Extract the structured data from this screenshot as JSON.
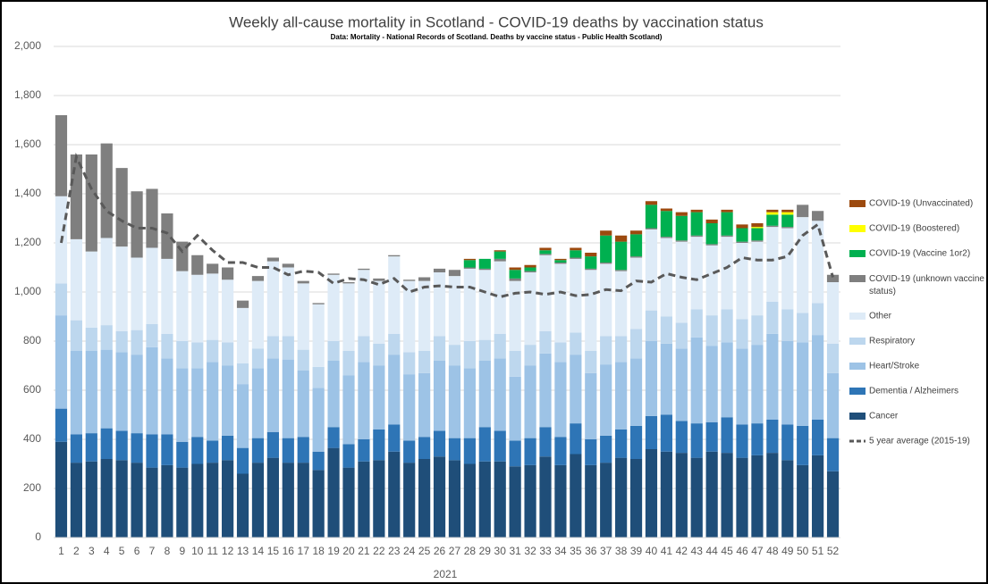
{
  "chart_data": {
    "type": "bar",
    "title": "Weekly all-cause mortality in Scotland - COVID-19 deaths by vaccination status",
    "subtitle": "Data: Mortality - National Records of Scotland. Deaths by vaccine status - Public Health Scotland)",
    "xlabel": "2021",
    "stacked": true,
    "grid": true,
    "legend": "right",
    "categories": [
      "1",
      "2",
      "3",
      "4",
      "5",
      "6",
      "7",
      "8",
      "9",
      "10",
      "11",
      "12",
      "13",
      "14",
      "15",
      "16",
      "17",
      "18",
      "19",
      "20",
      "21",
      "22",
      "23",
      "24",
      "25",
      "26",
      "27",
      "28",
      "29",
      "30",
      "31",
      "32",
      "33",
      "34",
      "35",
      "36",
      "37",
      "38",
      "39",
      "40",
      "41",
      "42",
      "43",
      "44",
      "45",
      "46",
      "47",
      "48",
      "49",
      "50",
      "51",
      "52"
    ],
    "ylim": [
      0,
      2000
    ],
    "yticks": [
      0,
      200,
      400,
      600,
      800,
      {
        "value": 1000,
        "label": "1,000"
      },
      {
        "value": 1200,
        "label": "1,200"
      },
      {
        "value": 1400,
        "label": "1,400"
      },
      {
        "value": 1600,
        "label": "1,600"
      },
      {
        "value": 1800,
        "label": "1,800"
      },
      {
        "value": 2000,
        "label": "2,000"
      }
    ],
    "series": [
      {
        "name": "Cancer",
        "color": "#1f4e79",
        "values": [
          390,
          305,
          310,
          320,
          315,
          305,
          285,
          295,
          285,
          300,
          305,
          315,
          260,
          305,
          325,
          305,
          305,
          275,
          365,
          285,
          310,
          315,
          350,
          305,
          320,
          330,
          315,
          300,
          310,
          310,
          290,
          295,
          330,
          295,
          340,
          295,
          305,
          325,
          320,
          360,
          350,
          345,
          325,
          350,
          345,
          325,
          335,
          345,
          315,
          295,
          335,
          270
        ]
      },
      {
        "name": "Dementia / Alzheimers",
        "color": "#2e75b6",
        "values": [
          135,
          115,
          115,
          125,
          120,
          120,
          135,
          125,
          105,
          110,
          90,
          100,
          105,
          100,
          105,
          100,
          105,
          75,
          85,
          95,
          90,
          125,
          110,
          90,
          90,
          105,
          90,
          105,
          140,
          125,
          105,
          110,
          120,
          115,
          125,
          105,
          110,
          115,
          135,
          135,
          150,
          130,
          140,
          120,
          145,
          135,
          130,
          135,
          145,
          160,
          145,
          135
        ]
      },
      {
        "name": "Heart/Stroke",
        "color": "#9dc3e6",
        "values": [
          380,
          340,
          335,
          320,
          320,
          320,
          355,
          310,
          300,
          280,
          320,
          285,
          260,
          285,
          300,
          320,
          270,
          260,
          270,
          280,
          315,
          260,
          285,
          270,
          260,
          285,
          295,
          285,
          270,
          295,
          260,
          295,
          300,
          305,
          280,
          270,
          290,
          275,
          275,
          305,
          290,
          295,
          350,
          310,
          305,
          310,
          320,
          350,
          340,
          340,
          345,
          265
        ]
      },
      {
        "name": "Respiratory",
        "color": "#bdd7ee",
        "values": [
          130,
          125,
          95,
          100,
          85,
          100,
          95,
          100,
          110,
          105,
          90,
          95,
          85,
          80,
          90,
          95,
          85,
          85,
          80,
          100,
          105,
          90,
          85,
          90,
          90,
          100,
          85,
          110,
          85,
          100,
          105,
          85,
          90,
          80,
          90,
          90,
          115,
          105,
          120,
          125,
          110,
          105,
          115,
          125,
          135,
          120,
          120,
          130,
          130,
          120,
          130,
          120
        ]
      },
      {
        "name": "Other",
        "color": "#deebf7",
        "values": [
          355,
          330,
          310,
          355,
          345,
          295,
          310,
          305,
          285,
          275,
          270,
          255,
          225,
          275,
          305,
          280,
          270,
          255,
          270,
          275,
          270,
          255,
          315,
          290,
          285,
          260,
          280,
          295,
          285,
          295,
          285,
          295,
          310,
          320,
          300,
          330,
          295,
          265,
          290,
          330,
          320,
          330,
          295,
          285,
          295,
          310,
          300,
          305,
          330,
          390,
          335,
          250
        ]
      },
      {
        "name": "COVID-19 (unknown vaccine status)",
        "color": "#7f7f7f",
        "values": [
          330,
          345,
          395,
          385,
          320,
          270,
          240,
          185,
          120,
          80,
          40,
          50,
          30,
          20,
          15,
          15,
          10,
          5,
          5,
          5,
          5,
          10,
          5,
          5,
          15,
          15,
          25,
          5,
          5,
          10,
          10,
          5,
          5,
          5,
          5,
          5,
          5,
          5,
          5,
          5,
          5,
          5,
          5,
          5,
          5,
          5,
          5,
          5,
          5,
          50,
          40,
          30
        ]
      },
      {
        "name": "COVID-19 (Vaccine 1or2)",
        "color": "#00b050",
        "values": [
          0,
          0,
          0,
          0,
          0,
          0,
          0,
          0,
          0,
          0,
          0,
          0,
          0,
          0,
          0,
          0,
          0,
          0,
          0,
          0,
          0,
          0,
          0,
          0,
          0,
          0,
          0,
          30,
          40,
          30,
          35,
          15,
          15,
          10,
          30,
          50,
          110,
          115,
          90,
          95,
          105,
          100,
          95,
          85,
          95,
          55,
          50,
          45,
          50,
          0,
          0,
          0
        ]
      },
      {
        "name": "COVID-19 (Boostered)",
        "color": "#ffff00",
        "values": [
          0,
          0,
          0,
          0,
          0,
          0,
          0,
          0,
          0,
          0,
          0,
          0,
          0,
          0,
          0,
          0,
          0,
          0,
          0,
          0,
          0,
          0,
          0,
          0,
          0,
          0,
          0,
          0,
          0,
          0,
          0,
          0,
          0,
          0,
          0,
          0,
          0,
          0,
          0,
          0,
          0,
          0,
          0,
          0,
          0,
          0,
          5,
          10,
          10,
          0,
          0,
          0
        ]
      },
      {
        "name": "COVID-19 (Unvaccinated)",
        "color": "#9c4a0f",
        "values": [
          0,
          0,
          0,
          0,
          0,
          0,
          0,
          0,
          0,
          0,
          0,
          0,
          0,
          0,
          0,
          0,
          0,
          0,
          0,
          0,
          0,
          0,
          0,
          0,
          0,
          0,
          0,
          5,
          0,
          5,
          10,
          10,
          10,
          5,
          10,
          15,
          20,
          25,
          15,
          15,
          10,
          15,
          10,
          15,
          10,
          15,
          15,
          10,
          10,
          0,
          0,
          0
        ]
      }
    ],
    "average": {
      "name": "5 year average (2015-19)",
      "color": "#595959",
      "values": [
        1200,
        1550,
        1420,
        1330,
        1290,
        1260,
        1260,
        1240,
        1165,
        1230,
        1170,
        1120,
        1120,
        1100,
        1100,
        1070,
        1085,
        1080,
        1035,
        1055,
        1050,
        1030,
        1055,
        1000,
        1020,
        1025,
        1020,
        1020,
        1000,
        980,
        995,
        1000,
        990,
        1000,
        985,
        990,
        1010,
        1005,
        1045,
        1040,
        1075,
        1060,
        1050,
        1075,
        1100,
        1140,
        1130,
        1130,
        1145,
        1230,
        1275,
        1060
      ]
    }
  }
}
